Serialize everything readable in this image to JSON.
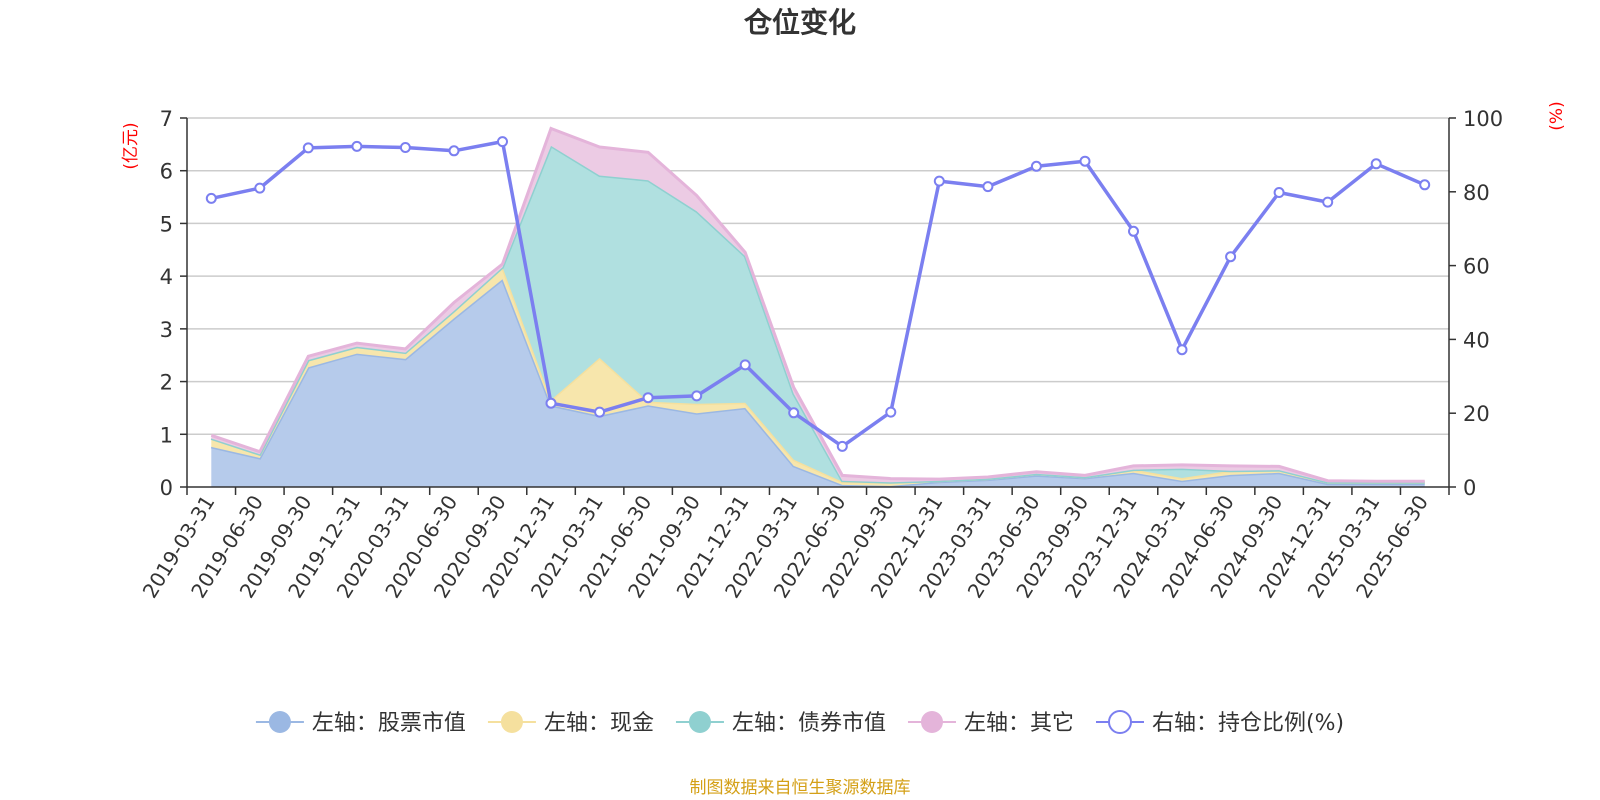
{
  "chart_data": {
    "type": "area",
    "title": "仓位变化",
    "left_axis_unit": "(亿元)",
    "right_axis_unit": "(%)",
    "left_ylim": [
      0,
      7
    ],
    "left_yticks": [
      "0",
      "1",
      "2",
      "3",
      "4",
      "5",
      "6",
      "7"
    ],
    "right_ylim": [
      0,
      100
    ],
    "right_yticks": [
      "0",
      "20",
      "40",
      "60",
      "80",
      "100"
    ],
    "grid": true,
    "legend_position": "bottom",
    "categories": [
      "2019-03-31",
      "2019-06-30",
      "2019-09-30",
      "2019-12-31",
      "2020-03-31",
      "2020-06-30",
      "2020-09-30",
      "2020-12-31",
      "2021-03-31",
      "2021-06-30",
      "2021-09-30",
      "2021-12-31",
      "2022-03-31",
      "2022-06-30",
      "2022-09-30",
      "2022-12-31",
      "2023-03-31",
      "2023-06-30",
      "2023-09-30",
      "2023-12-31",
      "2024-03-31",
      "2024-06-30",
      "2024-09-30",
      "2024-12-31",
      "2025-03-31",
      "2025-06-30"
    ],
    "series": [
      {
        "name": "左轴：股票市值",
        "axis": "left",
        "kind": "area",
        "color": "#9bb8e3",
        "fill": "#b6cbeb",
        "values": [
          0.76,
          0.55,
          2.27,
          2.53,
          2.43,
          3.2,
          3.94,
          1.55,
          1.35,
          1.55,
          1.4,
          1.5,
          0.4,
          0.04,
          0.02,
          0.1,
          0.14,
          0.22,
          0.17,
          0.27,
          0.12,
          0.23,
          0.27,
          0.06,
          0.06,
          0.06
        ]
      },
      {
        "name": "左轴：现金",
        "axis": "left",
        "kind": "area",
        "color": "#f5e09e",
        "fill": "#f7e6ac",
        "values": [
          0.16,
          0.07,
          0.14,
          0.13,
          0.12,
          0.14,
          0.23,
          0.1,
          1.1,
          0.07,
          0.18,
          0.1,
          0.12,
          0.06,
          0.07,
          0.02,
          0.02,
          0.03,
          0.02,
          0.06,
          0.05,
          0.08,
          0.05,
          0.03,
          0.03,
          0.03
        ]
      },
      {
        "name": "左轴：债券市值",
        "axis": "left",
        "kind": "area",
        "color": "#8fd0d0",
        "fill": "#b0e0e0",
        "values": [
          0,
          0,
          0,
          0,
          0,
          0,
          0,
          4.82,
          3.46,
          4.2,
          3.65,
          2.78,
          1.25,
          0.02,
          0,
          0,
          0,
          0,
          0,
          0,
          0.18,
          0,
          0,
          0,
          0,
          0
        ]
      },
      {
        "name": "左轴：其它",
        "axis": "left",
        "kind": "area",
        "color": "#e4b4da",
        "fill": "#eccbe4",
        "values": [
          0.06,
          0.05,
          0.07,
          0.07,
          0.07,
          0.16,
          0.06,
          0.33,
          0.54,
          0.53,
          0.3,
          0.07,
          0.12,
          0.1,
          0.07,
          0.03,
          0.03,
          0.04,
          0.03,
          0.07,
          0.07,
          0.09,
          0.07,
          0.03,
          0.02,
          0.02
        ]
      },
      {
        "name": "右轴：持仓比例(%)",
        "axis": "right",
        "kind": "line",
        "color": "#7b7ff0",
        "values": [
          78.2,
          81.0,
          91.9,
          92.3,
          92.0,
          91.1,
          93.6,
          22.7,
          20.3,
          24.2,
          24.7,
          33.1,
          20.1,
          11.0,
          20.3,
          82.9,
          81.4,
          86.9,
          88.3,
          69.3,
          37.2,
          62.4,
          79.8,
          77.2,
          87.6,
          81.9
        ]
      }
    ],
    "source": "制图数据来自恒生聚源数据库"
  }
}
